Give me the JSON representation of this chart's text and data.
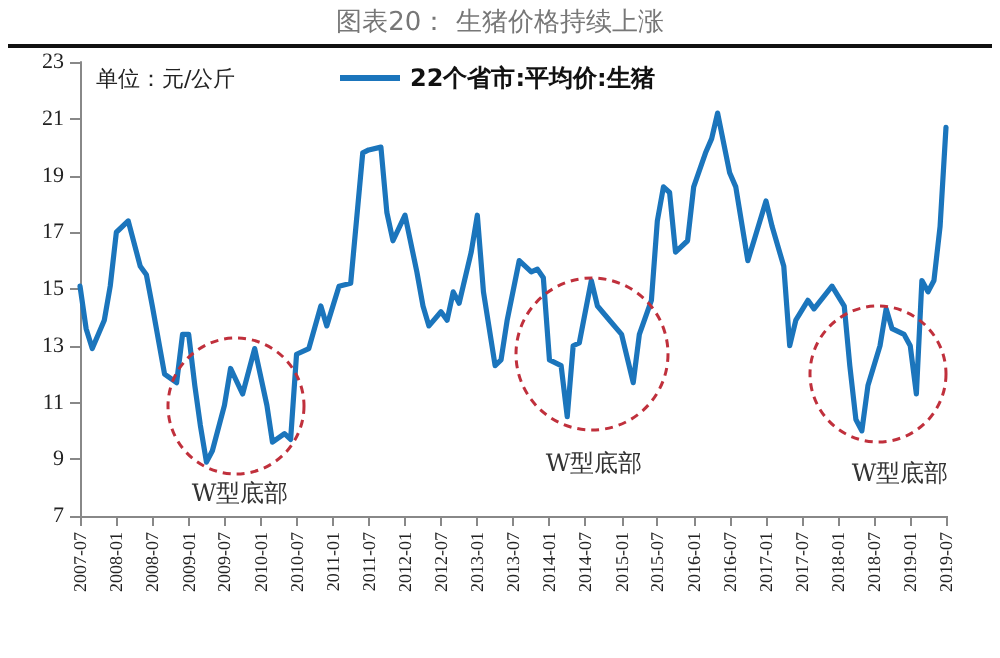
{
  "chart_data": {
    "type": "line",
    "title": "图表20： 生猪价格持续上涨",
    "ylabel": "单位：元/公斤",
    "annotations": [
      "W型底部",
      "W型底部",
      "W型底部"
    ],
    "x": [
      "2007-07",
      "2007-08",
      "2007-09",
      "2007-11",
      "2007-12",
      "2008-01",
      "2008-03",
      "2008-05",
      "2008-06",
      "2008-07",
      "2008-09",
      "2008-11",
      "2008-12",
      "2009-01",
      "2009-02",
      "2009-03",
      "2009-04",
      "2009-05",
      "2009-07",
      "2009-08",
      "2009-10",
      "2009-12",
      "2010-02",
      "2010-03",
      "2010-05",
      "2010-06",
      "2010-07",
      "2010-09",
      "2010-11",
      "2010-12",
      "2011-02",
      "2011-04",
      "2011-06",
      "2011-07",
      "2011-09",
      "2011-10",
      "2011-11",
      "2012-01",
      "2012-03",
      "2012-04",
      "2012-05",
      "2012-07",
      "2012-08",
      "2012-09",
      "2012-10",
      "2012-12",
      "2013-01",
      "2013-02",
      "2013-04",
      "2013-05",
      "2013-06",
      "2013-08",
      "2013-10",
      "2013-11",
      "2013-12",
      "2014-01",
      "2014-03",
      "2014-04",
      "2014-05",
      "2014-06",
      "2014-08",
      "2014-09",
      "2014-11",
      "2015-01",
      "2015-03",
      "2015-04",
      "2015-06",
      "2015-07",
      "2015-08",
      "2015-09",
      "2015-10",
      "2015-12",
      "2016-01",
      "2016-03",
      "2016-04",
      "2016-05",
      "2016-07",
      "2016-08",
      "2016-10",
      "2016-11",
      "2017-01",
      "2017-02",
      "2017-04",
      "2017-05",
      "2017-06",
      "2017-08",
      "2017-09",
      "2017-12",
      "2018-02",
      "2018-03",
      "2018-04",
      "2018-05",
      "2018-06",
      "2018-08",
      "2018-09",
      "2018-10",
      "2018-12",
      "2019-01",
      "2019-02",
      "2019-03",
      "2019-04",
      "2019-05",
      "2019-06",
      "2019-07"
    ],
    "series": [
      {
        "name": "22个省市:平均价:生猪",
        "color": "#1b75bc",
        "values": [
          15.1,
          13.6,
          12.9,
          13.9,
          15.1,
          17.0,
          17.4,
          15.8,
          15.5,
          14.4,
          12.0,
          11.7,
          13.4,
          13.4,
          11.6,
          10.2,
          8.9,
          9.3,
          10.9,
          12.2,
          11.3,
          12.9,
          10.9,
          9.6,
          9.9,
          9.7,
          12.7,
          12.9,
          14.4,
          13.7,
          15.1,
          15.2,
          19.8,
          19.9,
          20.0,
          17.7,
          16.7,
          17.6,
          15.6,
          14.4,
          13.7,
          14.2,
          13.9,
          14.9,
          14.5,
          16.3,
          17.6,
          14.9,
          12.3,
          12.5,
          13.9,
          16.0,
          15.6,
          15.7,
          15.4,
          12.5,
          12.3,
          10.5,
          13.0,
          13.1,
          15.3,
          14.4,
          13.9,
          13.4,
          11.7,
          13.4,
          14.6,
          17.4,
          18.6,
          18.4,
          16.3,
          16.7,
          18.6,
          19.8,
          20.3,
          21.2,
          19.1,
          18.6,
          16.0,
          16.7,
          18.1,
          17.2,
          15.8,
          13.0,
          13.9,
          14.6,
          14.3,
          15.1,
          14.4,
          12.3,
          10.4,
          10.0,
          11.6,
          13.0,
          14.3,
          13.6,
          13.4,
          13.0,
          11.3,
          15.3,
          14.9,
          15.3,
          17.2,
          20.7
        ]
      }
    ],
    "xlim": [
      "2007-07",
      "2019-07"
    ],
    "xticks": [
      "2007-07",
      "2008-01",
      "2008-07",
      "2009-01",
      "2009-07",
      "2010-01",
      "2010-07",
      "2011-01",
      "2011-07",
      "2012-01",
      "2012-07",
      "2013-01",
      "2013-07",
      "2014-01",
      "2014-07",
      "2015-01",
      "2015-07",
      "2016-01",
      "2016-07",
      "2017-01",
      "2017-07",
      "2018-01",
      "2018-07",
      "2019-01",
      "2019-07"
    ],
    "ylim": [
      7,
      23
    ],
    "yticks": [
      7,
      9,
      11,
      13,
      15,
      17,
      19,
      21,
      23
    ],
    "grid": false,
    "legend": "top",
    "marker": "none",
    "line_style": "solid"
  }
}
